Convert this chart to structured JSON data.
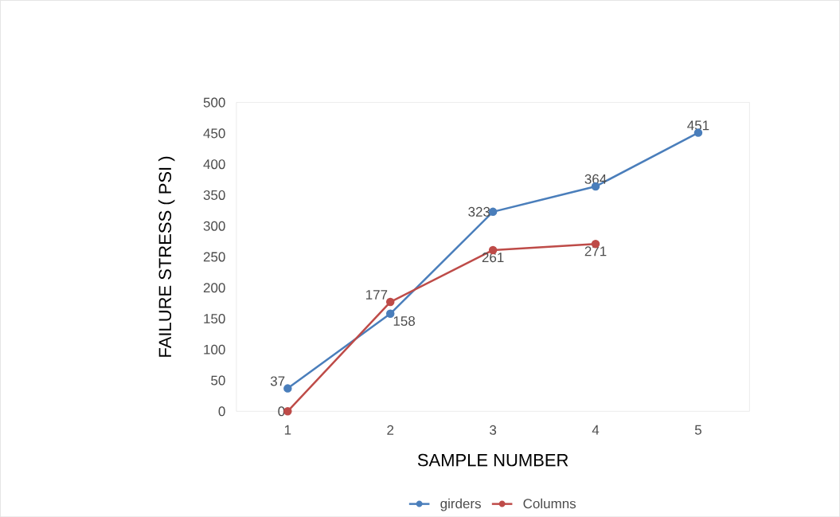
{
  "chart_data": {
    "type": "line",
    "xlabel": "SAMPLE NUMBER",
    "ylabel": "FAILURE STRESS ( PSI )",
    "categories": [
      "1",
      "2",
      "3",
      "4",
      "5"
    ],
    "series": [
      {
        "name": "girders",
        "color": "#4a7ebb",
        "values": [
          37,
          158,
          323,
          364,
          451
        ]
      },
      {
        "name": "Columns",
        "color": "#be4b48",
        "values": [
          0,
          177,
          261,
          271,
          null
        ]
      }
    ],
    "ylim": [
      0,
      500
    ],
    "yticks": [
      0,
      50,
      100,
      150,
      200,
      250,
      300,
      350,
      400,
      450,
      500
    ],
    "data_labels": true,
    "legend": "bottom",
    "marker": "circle",
    "line_style": "solid",
    "grid": false
  }
}
